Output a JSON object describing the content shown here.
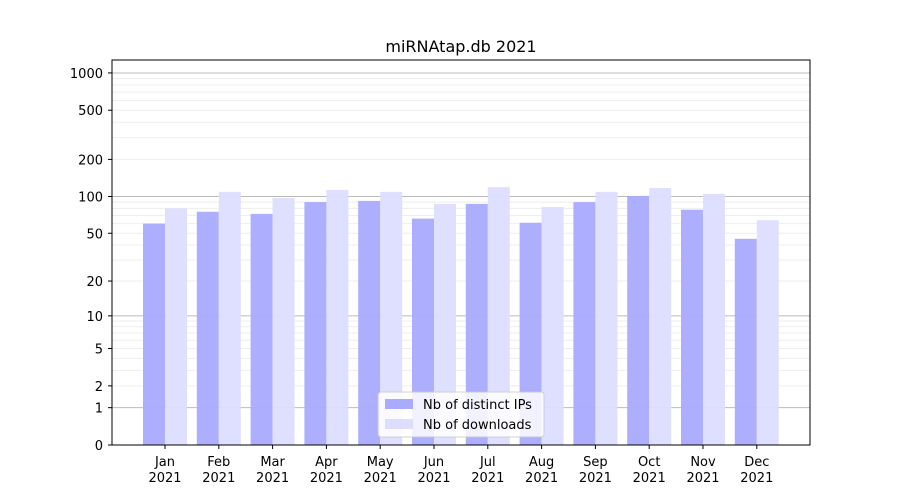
{
  "chart_data": {
    "type": "bar",
    "title": "miRNAtap.db 2021",
    "yscale": "symlog",
    "ylim": [
      0,
      1300
    ],
    "yticks": [
      0,
      1,
      2,
      5,
      10,
      20,
      50,
      100,
      200,
      500,
      1000
    ],
    "grid": true,
    "legend_position": "bottom-center",
    "categories": [
      "Jan\n2021",
      "Feb\n2021",
      "Mar\n2021",
      "Apr\n2021",
      "May\n2021",
      "Jun\n2021",
      "Jul\n2021",
      "Aug\n2021",
      "Sep\n2021",
      "Oct\n2021",
      "Nov\n2021",
      "Dec\n2021"
    ],
    "series": [
      {
        "name": "Nb of distinct IPs",
        "color": "#aaaaff",
        "values": [
          60,
          75,
          72,
          90,
          92,
          66,
          87,
          61,
          90,
          101,
          78,
          45
        ]
      },
      {
        "name": "Nb of downloads",
        "color": "#ddddff",
        "values": [
          80,
          109,
          97,
          113,
          109,
          87,
          119,
          82,
          109,
          117,
          105,
          64
        ]
      }
    ]
  }
}
